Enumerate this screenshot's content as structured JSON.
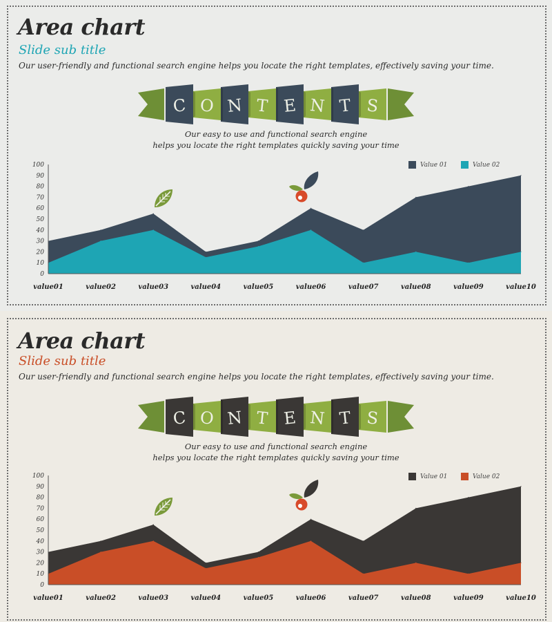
{
  "slides": [
    {
      "title": "Area chart",
      "subtitle": "Slide sub title",
      "description": "Our user-friendly and functional search engine helps you locate the right templates, effectively  saving your time.",
      "ribbon_letters": [
        "C",
        "O",
        "N",
        "T",
        "E",
        "N",
        "T",
        "S"
      ],
      "ribbon_caption": [
        "Our easy to use and functional search engine",
        "helps you locate the right templates quickly saving your time"
      ],
      "colors": {
        "series1": "#3b4a5a",
        "series2": "#1ea5b4",
        "subtitle": "#1ea5b4",
        "dark_panel": "#3b4a5a",
        "green_dark": "#6e8f36",
        "green_light": "#8fae42",
        "berry": "#d84a2a",
        "leaf": "#7a9a3a"
      },
      "icons": [
        "leaf-icon",
        "berry-icon"
      ],
      "chart_data": {
        "type": "area",
        "categories": [
          "value01",
          "value02",
          "value03",
          "value04",
          "value05",
          "value06",
          "value07",
          "value08",
          "value09",
          "value10"
        ],
        "series": [
          {
            "name": "Value 01",
            "values": [
              30,
              40,
              55,
              20,
              30,
              60,
              40,
              70,
              80,
              90
            ]
          },
          {
            "name": "Value 02",
            "values": [
              10,
              30,
              40,
              15,
              25,
              40,
              10,
              20,
              10,
              20
            ]
          }
        ],
        "yticks": [
          0,
          10,
          20,
          30,
          40,
          50,
          60,
          70,
          80,
          90,
          100
        ],
        "ylim": [
          0,
          100
        ],
        "legend": "top-right",
        "title": "",
        "xlabel": "",
        "ylabel": ""
      }
    },
    {
      "title": "Area chart",
      "subtitle": "Slide sub title",
      "description": "Our user-friendly and functional search engine helps you locate the right templates, effectively  saving your time.",
      "ribbon_letters": [
        "C",
        "O",
        "N",
        "T",
        "E",
        "N",
        "T",
        "S"
      ],
      "ribbon_caption": [
        "Our easy to use and functional search engine",
        "helps you locate the right templates quickly saving your time"
      ],
      "colors": {
        "series1": "#3a3735",
        "series2": "#c94e27",
        "subtitle": "#c94e27",
        "dark_panel": "#3a3735",
        "green_dark": "#6e8f36",
        "green_light": "#8fae42",
        "berry": "#d84a2a",
        "leaf": "#7a9a3a"
      },
      "icons": [
        "leaf-icon",
        "berry-icon"
      ],
      "chart_data": {
        "type": "area",
        "categories": [
          "value01",
          "value02",
          "value03",
          "value04",
          "value05",
          "value06",
          "value07",
          "value08",
          "value09",
          "value10"
        ],
        "series": [
          {
            "name": "Value 01",
            "values": [
              30,
              40,
              55,
              20,
              30,
              60,
              40,
              70,
              80,
              90
            ]
          },
          {
            "name": "Value 02",
            "values": [
              10,
              30,
              40,
              15,
              25,
              40,
              10,
              20,
              10,
              20
            ]
          }
        ],
        "yticks": [
          0,
          10,
          20,
          30,
          40,
          50,
          60,
          70,
          80,
          90,
          100
        ],
        "ylim": [
          0,
          100
        ],
        "legend": "top-right",
        "title": "",
        "xlabel": "",
        "ylabel": ""
      }
    }
  ]
}
